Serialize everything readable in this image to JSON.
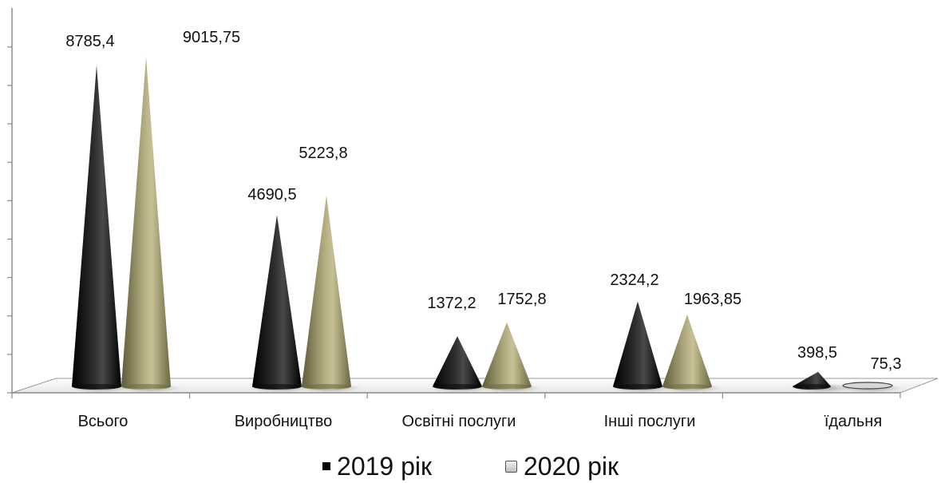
{
  "chart_data": {
    "type": "bar",
    "style": "3d-cone",
    "categories": [
      "Всього",
      "Виробництво",
      "Освітні послуги",
      "Інші послуги",
      "їдальня"
    ],
    "series": [
      {
        "name": "2019 рік",
        "values": [
          8785.4,
          4690.5,
          1372.2,
          2324.2,
          398.5
        ],
        "labels": [
          "8785,4",
          "4690,5",
          "1372,2",
          "2324,2",
          "398,5"
        ],
        "color": "#000000"
      },
      {
        "name": "2020 рік",
        "values": [
          9015.75,
          5223.8,
          1752.8,
          1963.85,
          75.3
        ],
        "labels": [
          "9015,75",
          "5223,8",
          "1752,8",
          "1963,85",
          "75,3"
        ],
        "color": "#a39d74",
        "legend_color": "#d9d9d9"
      }
    ],
    "ylim": [
      0,
      9000
    ],
    "grid": false,
    "legend_position": "bottom"
  }
}
